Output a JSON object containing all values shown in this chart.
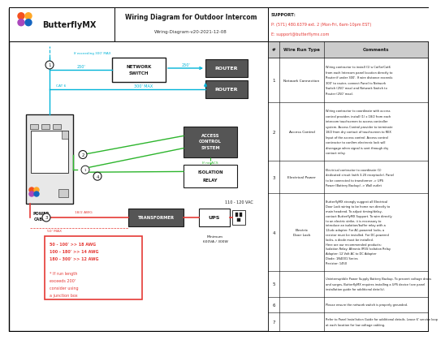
{
  "title": "Wiring Diagram for Outdoor Intercom",
  "subtitle": "Wiring-Diagram-v20-2021-12-08",
  "logo_text": "ButterflyMX",
  "support_label": "SUPPORT:",
  "support_phone": "P: (571) 480.6379 ext. 2 (Mon-Fri, 6am-10pm EST)",
  "support_email": "E: support@butterflymx.com",
  "bg_color": "#ffffff",
  "cyan": "#00b4d8",
  "red": "#e53935",
  "green": "#2db52d",
  "dark": "#1a1a1a",
  "dark_box": "#555555",
  "light_gray": "#e8e8e8",
  "med_gray": "#cccccc",
  "table_rows": [
    {
      "num": "1",
      "type": "Network Connection",
      "lines": [
        "Wiring contractor to install (1) a Cat5e/Cat6",
        "from each Intercom panel location directly to",
        "Router if under 300'. If wire distance exceeds",
        "300' to router, connect Panel to Network",
        "Switch (250' max) and Network Switch to",
        "Router (250' max)."
      ]
    },
    {
      "num": "2",
      "type": "Access Control",
      "lines": [
        "Wiring contractor to coordinate with access",
        "control provider, install (1) x 18/2 from each",
        "intercom touchscreen to access controller",
        "system. Access Control provider to terminate",
        "18/2 from dry contact of touchscreen to REX",
        "Input of the access control. Access control",
        "contractor to confirm electronic lock will",
        "disengage when signal is sent through dry",
        "contact relay."
      ]
    },
    {
      "num": "3",
      "type": "Electrical Power",
      "lines": [
        "Electrical contractor to coordinate (1)",
        "dedicated circuit (with 3-20 receptacle). Panel",
        "to be connected to transformer -> UPS",
        "Power (Battery Backup) -> Wall outlet"
      ]
    },
    {
      "num": "4",
      "type": "Electric Door Lock",
      "lines": [
        "ButterflyMX strongly suggest all Electrical",
        "Door Lock wiring to be home run directly to",
        "main headend. To adjust timing/delay,",
        "contact ButterflyMX Support. To wire directly",
        "to an electric strike, it is necessary to",
        "introduce an isolation/buffer relay with a",
        "12vdc adapter. For AC-powered locks, a",
        "resistor must be installed. For DC-powered",
        "locks, a diode must be installed.",
        "Here are our recommended products:",
        "Isolation Relay: Altronix IR5S Isolation Relay",
        "Adapter: 12 Volt AC to DC Adapter",
        "Diode: 1N4001 Series",
        "Resistor: 1450"
      ]
    },
    {
      "num": "5",
      "type": "",
      "lines": [
        "Uninterruptible Power Supply Battery Backup. To prevent voltage drops",
        "and surges, ButterflyMX requires installing a UPS device (see panel",
        "installation guide for additional details)."
      ]
    },
    {
      "num": "6",
      "type": "",
      "lines": [
        "Please ensure the network switch is properly grounded."
      ]
    },
    {
      "num": "7",
      "type": "",
      "lines": [
        "Refer to Panel Installation Guide for additional details. Leave 6' service loop",
        "at each location for low voltage cabling."
      ]
    }
  ]
}
